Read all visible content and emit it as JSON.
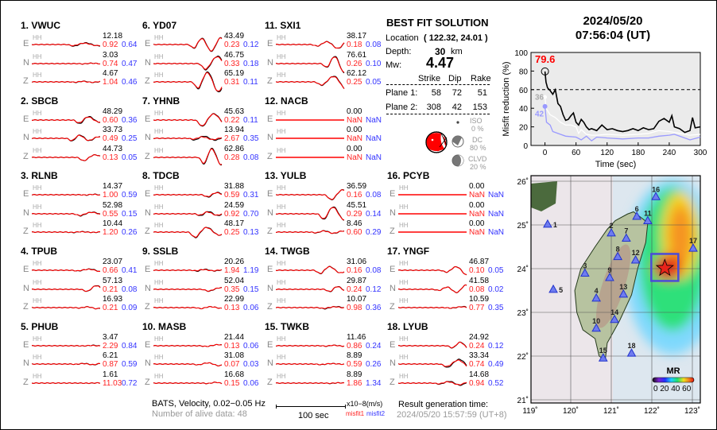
{
  "header": {
    "date": "2024/05/20",
    "time": "07:56:04  (UT)"
  },
  "stations": [
    {
      "label": "1.  VWUC",
      "comps": [
        {
          "c": "E",
          "amp": "12.18",
          "m1": "0.92",
          "m2": "0.64"
        },
        {
          "c": "N",
          "amp": "3.03",
          "m1": "0.74",
          "m2": "0.47"
        },
        {
          "c": "Z",
          "amp": "4.67",
          "m1": "1.04",
          "m2": "0.46"
        }
      ]
    },
    {
      "label": "2.  SBCB",
      "comps": [
        {
          "c": "E",
          "amp": "48.29",
          "m1": "0.60",
          "m2": "0.36"
        },
        {
          "c": "N",
          "amp": "33.73",
          "m1": "0.49",
          "m2": "0.25"
        },
        {
          "c": "Z",
          "amp": "44.73",
          "m1": "0.13",
          "m2": "0.05"
        }
      ]
    },
    {
      "label": "3.  RLNB",
      "comps": [
        {
          "c": "E",
          "amp": "14.37",
          "m1": "1.00",
          "m2": "0.59"
        },
        {
          "c": "N",
          "amp": "52.98",
          "m1": "0.55",
          "m2": "0.15"
        },
        {
          "c": "Z",
          "amp": "10.44",
          "m1": "1.20",
          "m2": "0.26"
        }
      ]
    },
    {
      "label": "4.  TPUB",
      "comps": [
        {
          "c": "E",
          "amp": "23.07",
          "m1": "0.66",
          "m2": "0.41"
        },
        {
          "c": "N",
          "amp": "57.13",
          "m1": "0.21",
          "m2": "0.08"
        },
        {
          "c": "Z",
          "amp": "16.93",
          "m1": "0.21",
          "m2": "0.09"
        }
      ]
    },
    {
      "label": "5.  PHUB",
      "comps": [
        {
          "c": "E",
          "amp": "3.47",
          "m1": "2.29",
          "m2": "0.84"
        },
        {
          "c": "N",
          "amp": "6.21",
          "m1": "0.87",
          "m2": "0.59"
        },
        {
          "c": "Z",
          "amp": "1.61",
          "m1": "11.03",
          "m2": "0.72"
        }
      ]
    },
    {
      "label": "6.  YD07",
      "comps": [
        {
          "c": "E",
          "amp": "43.49",
          "m1": "0.23",
          "m2": "0.12"
        },
        {
          "c": "N",
          "amp": "46.75",
          "m1": "0.33",
          "m2": "0.18"
        },
        {
          "c": "Z",
          "amp": "65.19",
          "m1": "0.31",
          "m2": "0.11"
        }
      ]
    },
    {
      "label": "7.  YHNB",
      "comps": [
        {
          "c": "E",
          "amp": "45.63",
          "m1": "0.22",
          "m2": "0.11"
        },
        {
          "c": "N",
          "amp": "13.94",
          "m1": "2.67",
          "m2": "0.35"
        },
        {
          "c": "Z",
          "amp": "62.86",
          "m1": "0.28",
          "m2": "0.08"
        }
      ]
    },
    {
      "label": "8.  TDCB",
      "comps": [
        {
          "c": "E",
          "amp": "31.88",
          "m1": "0.59",
          "m2": "0.31"
        },
        {
          "c": "N",
          "amp": "24.59",
          "m1": "0.92",
          "m2": "0.70"
        },
        {
          "c": "Z",
          "amp": "48.17",
          "m1": "0.25",
          "m2": "0.13"
        }
      ]
    },
    {
      "label": "9.  SSLB",
      "comps": [
        {
          "c": "E",
          "amp": "20.26",
          "m1": "1.94",
          "m2": "1.19"
        },
        {
          "c": "N",
          "amp": "52.04",
          "m1": "0.35",
          "m2": "0.15"
        },
        {
          "c": "Z",
          "amp": "22.99",
          "m1": "0.13",
          "m2": "0.06"
        }
      ]
    },
    {
      "label": "10. MASB",
      "comps": [
        {
          "c": "E",
          "amp": "21.44",
          "m1": "0.13",
          "m2": "0.06"
        },
        {
          "c": "N",
          "amp": "31.08",
          "m1": "0.07",
          "m2": "0.03"
        },
        {
          "c": "Z",
          "amp": "16.68",
          "m1": "0.15",
          "m2": "0.06"
        }
      ]
    },
    {
      "label": "11. SXI1",
      "comps": [
        {
          "c": "E",
          "amp": "38.17",
          "m1": "0.18",
          "m2": "0.08"
        },
        {
          "c": "N",
          "amp": "76.61",
          "m1": "0.26",
          "m2": "0.10"
        },
        {
          "c": "Z",
          "amp": "62.12",
          "m1": "0.25",
          "m2": "0.05"
        }
      ]
    },
    {
      "label": "12. NACB",
      "comps": [
        {
          "c": "E",
          "amp": "0.00",
          "m1": "NaN",
          "m2": "NaN"
        },
        {
          "c": "N",
          "amp": "0.00",
          "m1": "NaN",
          "m2": "NaN"
        },
        {
          "c": "Z",
          "amp": "0.00",
          "m1": "NaN",
          "m2": "NaN"
        }
      ]
    },
    {
      "label": "13. YULB",
      "comps": [
        {
          "c": "E",
          "amp": "36.59",
          "m1": "0.16",
          "m2": "0.08"
        },
        {
          "c": "N",
          "amp": "45.51",
          "m1": "0.29",
          "m2": "0.14"
        },
        {
          "c": "Z",
          "amp": "8.46",
          "m1": "0.60",
          "m2": "0.29"
        }
      ]
    },
    {
      "label": "14. TWGB",
      "comps": [
        {
          "c": "E",
          "amp": "31.06",
          "m1": "0.16",
          "m2": "0.08"
        },
        {
          "c": "N",
          "amp": "29.87",
          "m1": "0.24",
          "m2": "0.12"
        },
        {
          "c": "Z",
          "amp": "10.07",
          "m1": "0.98",
          "m2": "0.36"
        }
      ]
    },
    {
      "label": "15. TWKB",
      "comps": [
        {
          "c": "E",
          "amp": "11.46",
          "m1": "0.86",
          "m2": "0.24"
        },
        {
          "c": "N",
          "amp": "8.89",
          "m1": "0.59",
          "m2": "0.26"
        },
        {
          "c": "Z",
          "amp": "8.89",
          "m1": "1.86",
          "m2": "1.34"
        }
      ]
    },
    {
      "label": "16. PCYB",
      "comps": [
        {
          "c": "E",
          "amp": "0.00",
          "m1": "NaN",
          "m2": "NaN"
        },
        {
          "c": "N",
          "amp": "0.00",
          "m1": "NaN",
          "m2": "NaN"
        },
        {
          "c": "Z",
          "amp": "0.00",
          "m1": "NaN",
          "m2": "NaN"
        }
      ]
    },
    {
      "label": "17. YNGF",
      "comps": [
        {
          "c": "E",
          "amp": "46.87",
          "m1": "0.10",
          "m2": "0.05"
        },
        {
          "c": "N",
          "amp": "41.58",
          "m1": "0.08",
          "m2": "0.02"
        },
        {
          "c": "Z",
          "amp": "10.59",
          "m1": "0.77",
          "m2": "0.35"
        }
      ]
    },
    {
      "label": "18. LYUB",
      "comps": [
        {
          "c": "E",
          "amp": "24.92",
          "m1": "0.24",
          "m2": "0.12"
        },
        {
          "c": "N",
          "amp": "33.34",
          "m1": "0.74",
          "m2": "0.49"
        },
        {
          "c": "Z",
          "amp": "14.68",
          "m1": "0.94",
          "m2": "0.52"
        }
      ]
    }
  ],
  "channel_label": "HH",
  "solution": {
    "title": "BEST FIT SOLUTION",
    "location_label": "Location",
    "location_value": "( 122.32,  24.01 )",
    "depth_label": "Depth:",
    "depth_value": "30",
    "depth_unit": "km",
    "mw_label": "Mw:",
    "mw_value": "4.47",
    "columns": [
      "Strike",
      "Dip",
      "Rake"
    ],
    "planes": [
      {
        "label": "Plane 1:",
        "strike": "58",
        "dip": "72",
        "rake": "51"
      },
      {
        "label": "Plane 2:",
        "strike": "308",
        "dip": "42",
        "rake": "153"
      }
    ],
    "components": [
      {
        "name": "ISO",
        "value": "0  %"
      },
      {
        "name": "DC",
        "value": "80 %"
      },
      {
        "name": "CLVD",
        "value": "20 %"
      }
    ]
  },
  "footer": {
    "filter": "BATS, Velocity, 0.02−0.05 Hz",
    "alive": "Number of alive data: 48",
    "scale_label": "100 sec",
    "unit": "x10−8(m/s)",
    "misfit1": "misfit1",
    "misfit2": "misfit2",
    "gen_label": "Result generation time:",
    "gen_time": "2024/05/20 15:57:59 (UT+8)"
  },
  "colors": {
    "observed": "#000000",
    "synthetic": "#ff0000",
    "misfit1": "#ff2222",
    "misfit2": "#3333ff"
  },
  "chart_data": {
    "type": "line",
    "xlabel": "Time (sec)",
    "ylabel": "Misfit reduction (%)",
    "xlim": [
      -27,
      300
    ],
    "ylim": [
      0,
      100
    ],
    "xticks": [
      0,
      60,
      120,
      180,
      240,
      300
    ],
    "yticks": [
      0,
      20,
      40,
      60,
      80,
      100
    ],
    "reference_line": 60,
    "annotations": [
      {
        "text": "79.6",
        "color": "#ff0000"
      },
      {
        "text": "36",
        "color": "#aaaaaa"
      },
      {
        "text": "42",
        "color": "#9999ff"
      }
    ],
    "series": [
      {
        "color": "#000000",
        "x": [
          0,
          2,
          5,
          10,
          15,
          20,
          25,
          30,
          35,
          40,
          45,
          50,
          55,
          60,
          65,
          70,
          75,
          80,
          85,
          90,
          100,
          110,
          120,
          130,
          140,
          150,
          160,
          170,
          180,
          190,
          200,
          210,
          220,
          230,
          240,
          245,
          250,
          260,
          270,
          280,
          285,
          290,
          300
        ],
        "y": [
          79.6,
          68,
          62,
          59,
          55,
          60,
          45,
          42,
          33,
          27,
          28,
          32,
          35,
          25,
          22,
          28,
          25,
          20,
          17,
          18,
          16,
          22,
          17,
          18,
          16,
          15,
          16,
          18,
          16,
          19,
          17,
          18,
          26,
          29,
          25,
          32,
          20,
          18,
          14,
          16,
          30,
          19,
          20
        ]
      },
      {
        "color": "#ffffff",
        "x": [
          0,
          2,
          10,
          20,
          30,
          40,
          50,
          60,
          65,
          70,
          80,
          90,
          100,
          120,
          150,
          180,
          200,
          220,
          240,
          260,
          280,
          300
        ],
        "y": [
          52,
          40,
          33,
          30,
          25,
          22,
          22,
          20,
          13,
          17,
          12,
          11,
          11,
          12,
          11,
          12,
          13,
          16,
          15,
          13,
          11,
          12
        ]
      },
      {
        "color": "#9999ff",
        "x": [
          0,
          3,
          10,
          15,
          20,
          30,
          40,
          60,
          70,
          80,
          90,
          100,
          120,
          150,
          180,
          200,
          220,
          240,
          250,
          260,
          280,
          300
        ],
        "y": [
          42,
          25,
          22,
          15,
          14,
          12,
          10,
          9,
          6,
          10,
          5,
          9,
          8,
          7,
          8,
          8,
          10,
          11,
          12,
          10,
          6,
          9
        ]
      }
    ]
  },
  "map": {
    "lon_ticks": [
      "119˚",
      "120˚",
      "121˚",
      "122˚",
      "123˚"
    ],
    "lat_ticks": [
      "21˚",
      "22˚",
      "23˚",
      "24˚",
      "25˚",
      "26˚"
    ],
    "epicenter": {
      "lon": 122.32,
      "lat": 24.01
    },
    "colorbar_title": "MR",
    "colorbar_labels": "0 20 40 60",
    "stations": [
      {
        "n": "1",
        "lon": 119.43,
        "lat": 25.02
      },
      {
        "n": "2",
        "lon": 121.0,
        "lat": 24.82
      },
      {
        "n": "3",
        "lon": 120.35,
        "lat": 23.9
      },
      {
        "n": "4",
        "lon": 120.63,
        "lat": 23.33
      },
      {
        "n": "5",
        "lon": 119.57,
        "lat": 23.53
      },
      {
        "n": "6",
        "lon": 121.63,
        "lat": 25.2
      },
      {
        "n": "7",
        "lon": 121.37,
        "lat": 24.7
      },
      {
        "n": "8",
        "lon": 121.16,
        "lat": 24.28
      },
      {
        "n": "9",
        "lon": 120.96,
        "lat": 23.8
      },
      {
        "n": "10",
        "lon": 120.63,
        "lat": 22.64
      },
      {
        "n": "11",
        "lon": 121.9,
        "lat": 25.1
      },
      {
        "n": "12",
        "lon": 121.6,
        "lat": 24.2
      },
      {
        "n": "13",
        "lon": 121.3,
        "lat": 23.42
      },
      {
        "n": "14",
        "lon": 121.08,
        "lat": 22.84
      },
      {
        "n": "15",
        "lon": 120.8,
        "lat": 21.96
      },
      {
        "n": "16",
        "lon": 122.1,
        "lat": 25.65
      },
      {
        "n": "17",
        "lon": 123.02,
        "lat": 24.47
      },
      {
        "n": "18",
        "lon": 121.5,
        "lat": 22.07
      }
    ]
  }
}
